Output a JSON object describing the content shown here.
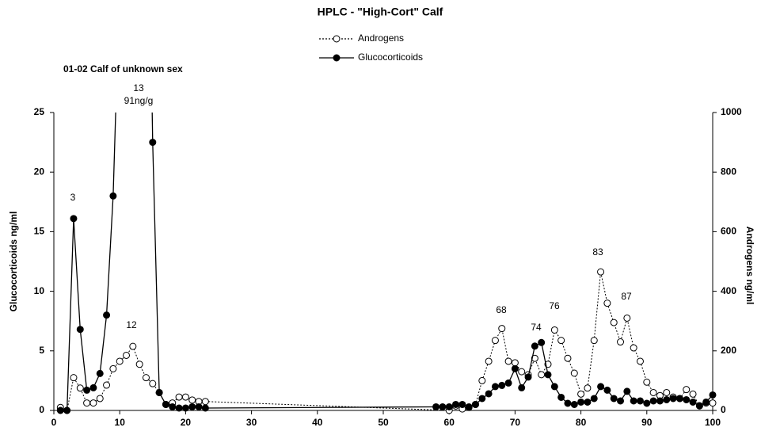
{
  "chart_data": {
    "type": "line",
    "title": "HPLC - \"High-Cort\" Calf",
    "subtitle": "01-02 Calf of unknown sex",
    "y_label": "Glucocorticoids ng/ml",
    "y2_label": "Androgens ng/ml",
    "xlim": [
      0,
      100
    ],
    "xticks": [
      0,
      10,
      20,
      30,
      40,
      50,
      60,
      70,
      80,
      90,
      100
    ],
    "ylim": [
      0,
      25
    ],
    "yticks": [
      0,
      5,
      10,
      15,
      20,
      25
    ],
    "y2lim": [
      0,
      1000
    ],
    "y2ticks": [
      0,
      200,
      400,
      600,
      800,
      1000
    ],
    "grid": false,
    "legend": "top",
    "series": [
      {
        "name": "Androgens",
        "color": "#000000",
        "line_style": "dotted",
        "marker": "open",
        "axis": "y2",
        "x": [
          1,
          2,
          3,
          4,
          5,
          6,
          7,
          8,
          9,
          10,
          11,
          12,
          13,
          14,
          15,
          16,
          17,
          18,
          19,
          20,
          21,
          22,
          23,
          60,
          61,
          62,
          63,
          64,
          65,
          66,
          67,
          68,
          69,
          70,
          71,
          72,
          73,
          74,
          75,
          76,
          77,
          78,
          79,
          80,
          81,
          82,
          83,
          84,
          85,
          86,
          87,
          88,
          89,
          90,
          91,
          92,
          93,
          94,
          95,
          96,
          97,
          98,
          99,
          100
        ],
        "values": [
          10,
          0,
          110,
          75,
          25,
          25,
          40,
          85,
          140,
          165,
          185,
          215,
          155,
          110,
          90,
          60,
          20,
          25,
          45,
          45,
          35,
          30,
          30,
          0,
          15,
          5,
          10,
          20,
          100,
          165,
          235,
          275,
          165,
          160,
          130,
          120,
          175,
          120,
          155,
          270,
          235,
          175,
          125,
          55,
          75,
          235,
          465,
          360,
          295,
          230,
          310,
          210,
          165,
          95,
          60,
          50,
          60,
          45,
          40,
          70,
          55,
          15,
          25,
          25
        ]
      },
      {
        "name": "Glucocorticoids",
        "color": "#000000",
        "line_style": "solid",
        "marker": "filled",
        "x": [
          1,
          2,
          3,
          4,
          5,
          6,
          7,
          8,
          9,
          13,
          15,
          16,
          17,
          18,
          19,
          20,
          21,
          22,
          23,
          58,
          59,
          60,
          61,
          62,
          63,
          64,
          65,
          66,
          67,
          68,
          69,
          70,
          71,
          72,
          73,
          74,
          75,
          76,
          77,
          78,
          79,
          80,
          81,
          82,
          83,
          84,
          85,
          86,
          87,
          88,
          89,
          90,
          91,
          92,
          93,
          94,
          95,
          96,
          97,
          98,
          99,
          100
        ],
        "values": [
          0,
          0,
          16.1,
          6.8,
          1.7,
          1.9,
          3.1,
          8,
          18,
          91,
          22.5,
          1.5,
          0.5,
          0.3,
          0.2,
          0.2,
          0.3,
          0.3,
          0.2,
          0.3,
          0.3,
          0.3,
          0.5,
          0.5,
          0.3,
          0.5,
          1.0,
          1.4,
          2.0,
          2.1,
          2.3,
          3.5,
          1.9,
          2.8,
          5.4,
          5.7,
          3.0,
          2.0,
          1.1,
          0.6,
          0.5,
          0.7,
          0.7,
          1.0,
          2.0,
          1.7,
          1.0,
          0.8,
          1.6,
          0.8,
          0.8,
          0.6,
          0.8,
          0.8,
          0.9,
          1.0,
          1.0,
          0.9,
          0.7,
          0.4,
          0.7,
          1.3
        ]
      }
    ],
    "annotations": [
      "3",
      "12",
      "13",
      "91ng/g",
      "68",
      "74",
      "76",
      "83",
      "87"
    ]
  }
}
